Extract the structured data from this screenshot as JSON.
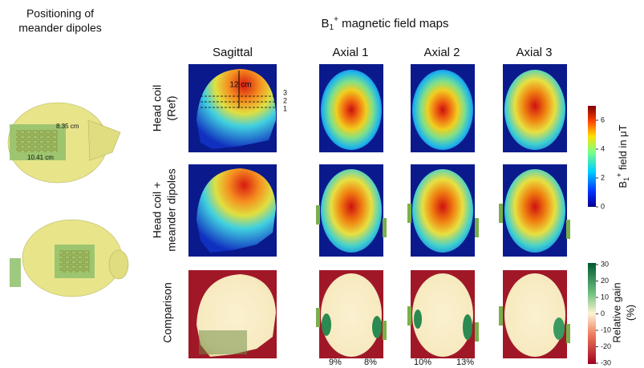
{
  "figure": {
    "left_title": [
      "Positioning of",
      "meander dipoles"
    ],
    "dipole_labels": [
      "8.35 cm",
      "10.41 cm"
    ],
    "title": {
      "base": "B",
      "sub": "1",
      "sup": "+",
      "text": " magnetic field maps"
    },
    "columns": [
      "Sagittal",
      "Axial 1",
      "Axial 2",
      "Axial 3"
    ],
    "rows": [
      [
        "Head coil",
        "(Ref)"
      ],
      [
        "Head coil +",
        "meander dipoles"
      ],
      [
        "Comparison"
      ]
    ],
    "sagittal_annotations": {
      "distance": "12 cm",
      "slices": [
        "3",
        "2",
        "1"
      ]
    },
    "colorbar_field": {
      "ticks": [
        0,
        2,
        4,
        6
      ],
      "label": {
        "base": "B",
        "sub": "1",
        "sup": "+",
        "text": " field in μT"
      }
    },
    "colorbar_gain": {
      "ticks": [
        30,
        20,
        10,
        0,
        -10,
        -20,
        -30
      ],
      "label": [
        "Relative gain",
        "(%)"
      ]
    },
    "gains": [
      "9%",
      "8%",
      "10%",
      "13%"
    ]
  }
}
